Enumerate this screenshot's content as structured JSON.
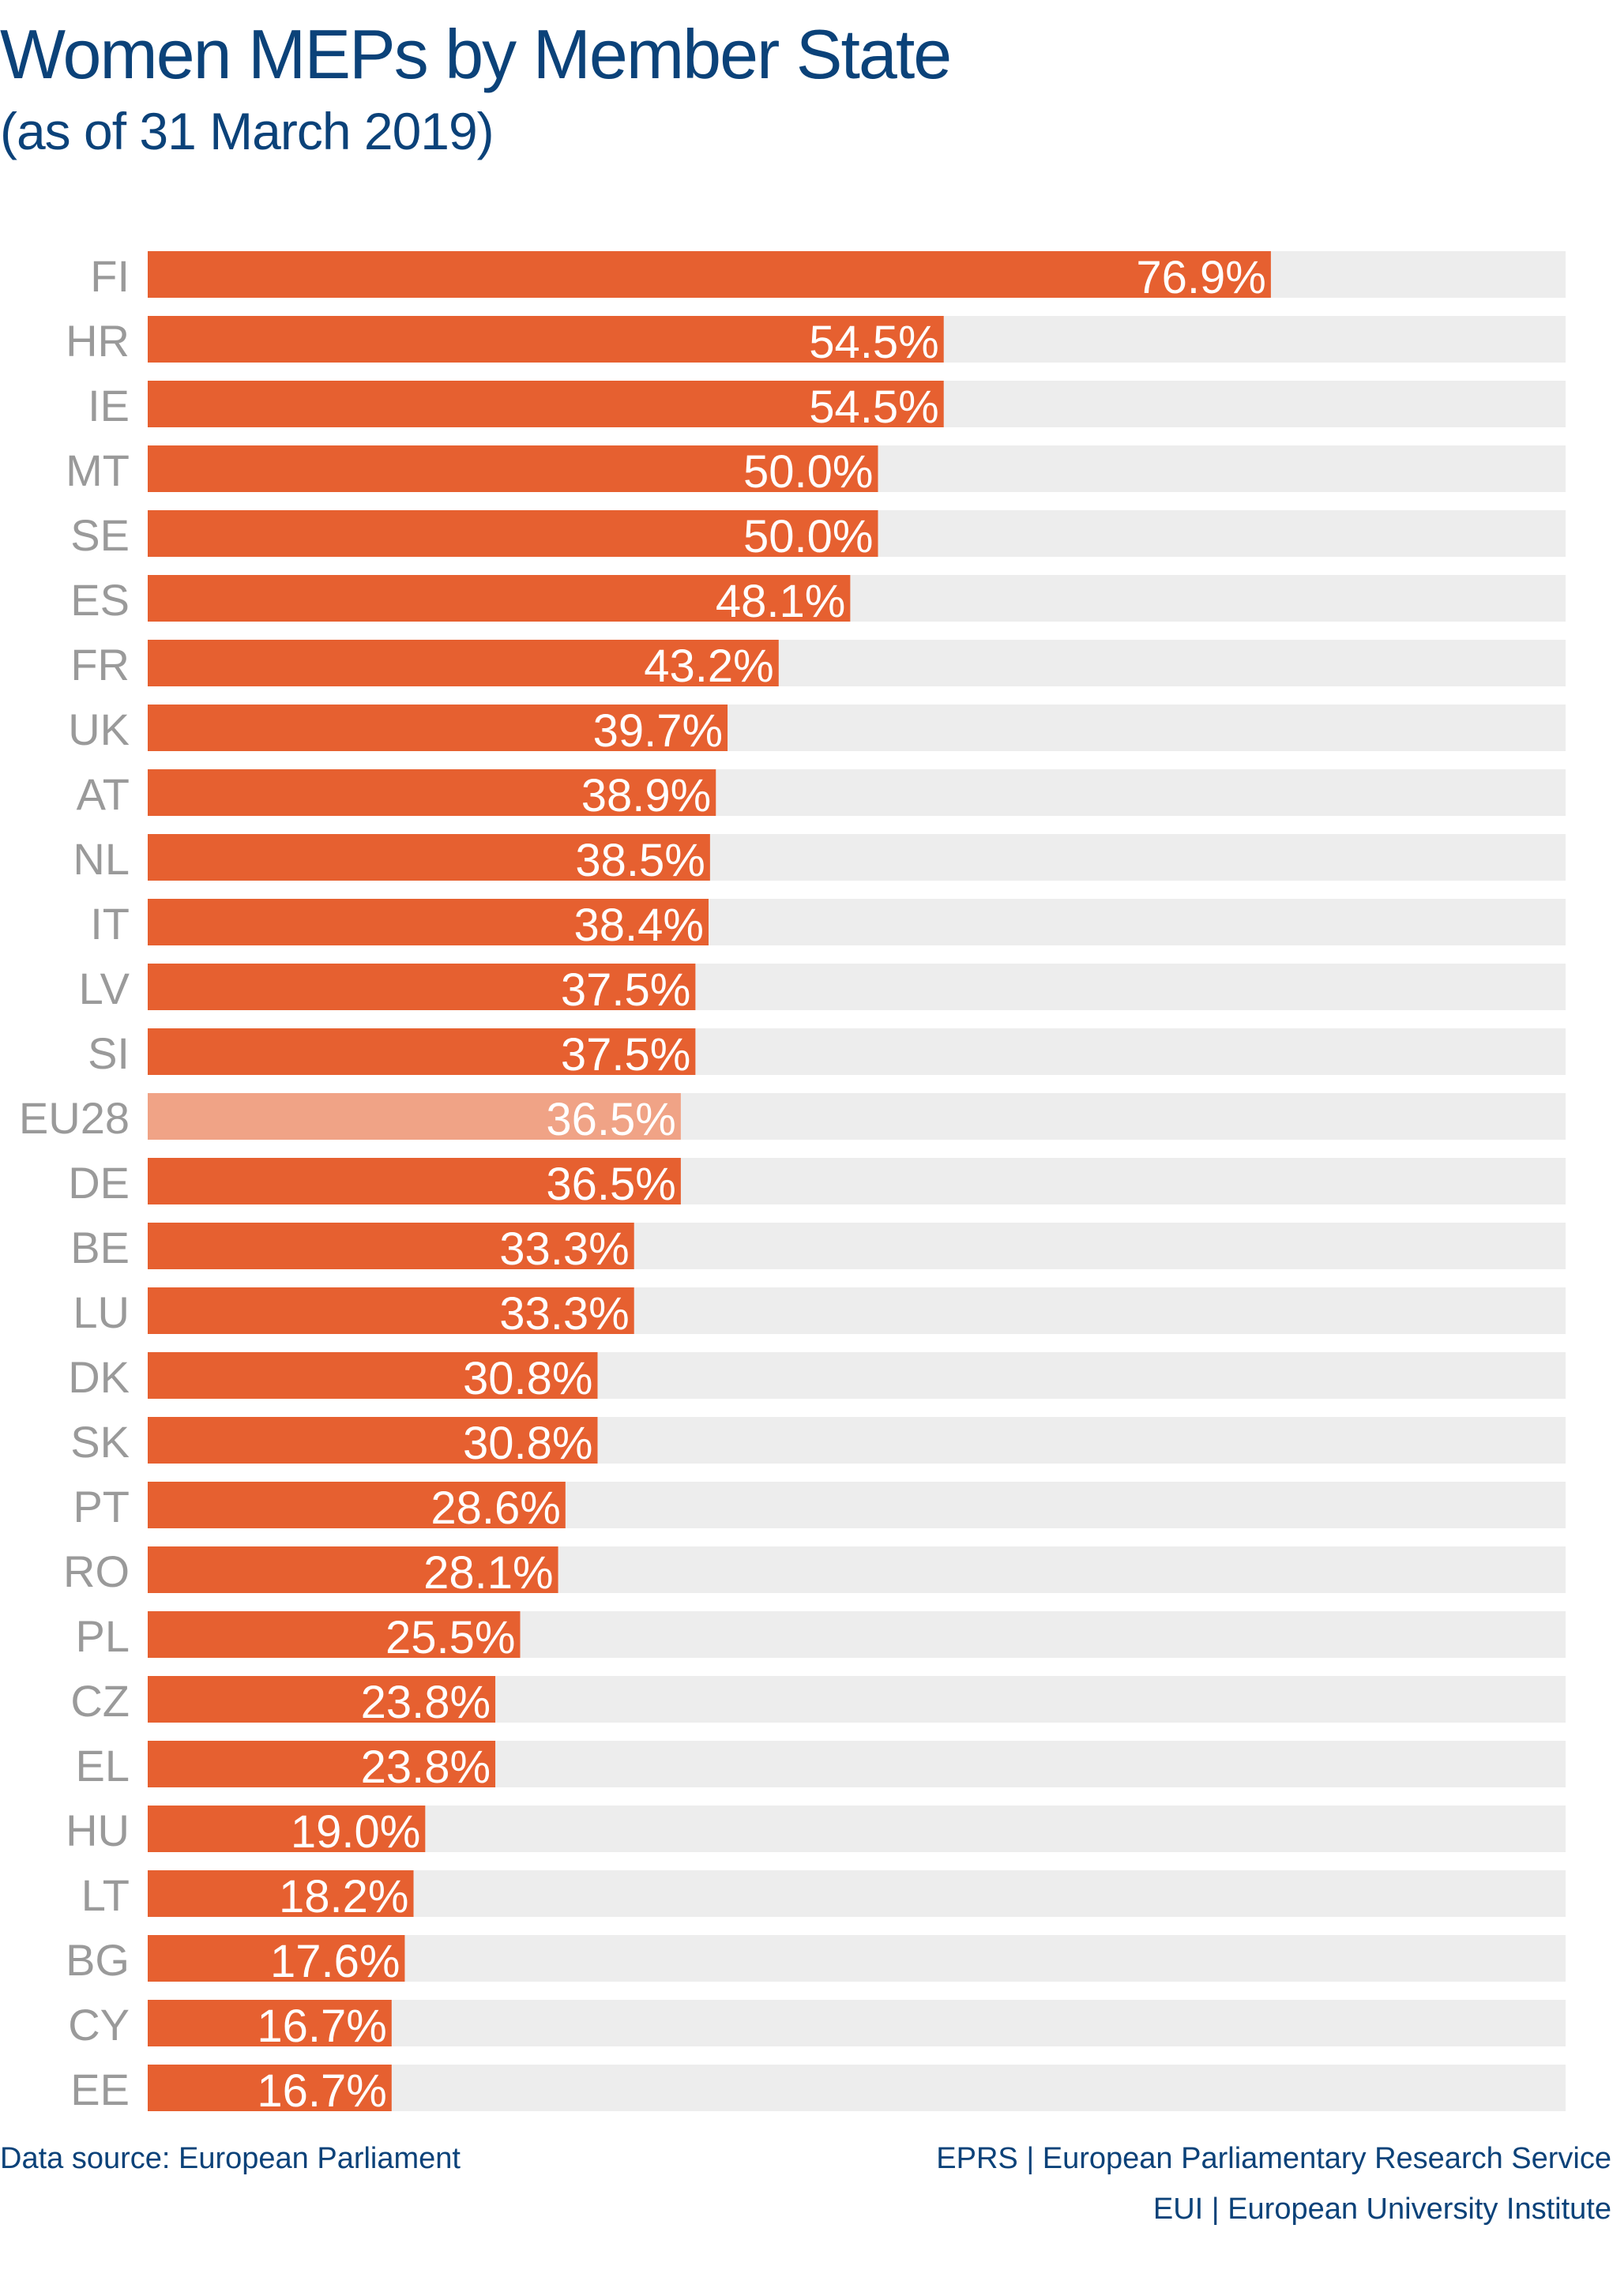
{
  "chart_data": {
    "type": "bar",
    "orientation": "horizontal",
    "title": "Women MEPs by Member State",
    "subtitle": "(as of 31 March 2019)",
    "categories": [
      "FI",
      "HR",
      "IE",
      "MT",
      "SE",
      "ES",
      "FR",
      "UK",
      "AT",
      "NL",
      "IT",
      "LV",
      "SI",
      "EU28",
      "DE",
      "BE",
      "LU",
      "DK",
      "SK",
      "PT",
      "RO",
      "PL",
      "CZ",
      "EL",
      "HU",
      "LT",
      "BG",
      "CY",
      "EE"
    ],
    "values": [
      76.9,
      54.5,
      54.5,
      50.0,
      50.0,
      48.1,
      43.2,
      39.7,
      38.9,
      38.5,
      38.4,
      37.5,
      37.5,
      36.5,
      36.5,
      33.3,
      33.3,
      30.8,
      30.8,
      28.6,
      28.1,
      25.5,
      23.8,
      23.8,
      19.0,
      18.2,
      17.6,
      16.7,
      16.7
    ],
    "value_labels": [
      "76.9%",
      "54.5%",
      "54.5%",
      "50.0%",
      "50.0%",
      "48.1%",
      "43.2%",
      "39.7%",
      "38.9%",
      "38.5%",
      "38.4%",
      "37.5%",
      "37.5%",
      "36.5%",
      "36.5%",
      "33.3%",
      "33.3%",
      "30.8%",
      "30.8%",
      "28.6%",
      "28.1%",
      "25.5%",
      "23.8%",
      "23.8%",
      "19.0%",
      "18.2%",
      "17.6%",
      "16.7%",
      "16.7%"
    ],
    "highlight": "EU28",
    "xlim": [
      0,
      100
    ],
    "grid": false,
    "colors": {
      "bar": "#e66030",
      "highlight": "#f0a386",
      "track": "#ededed",
      "category_label": "#9a9a9a",
      "value_label": "#ffffff",
      "title": "#0b4279"
    }
  },
  "footer": {
    "source": "Data source:  European Parliament",
    "credit1": "EPRS | European Parliamentary Research Service",
    "credit2": "EUI | European University Institute"
  }
}
